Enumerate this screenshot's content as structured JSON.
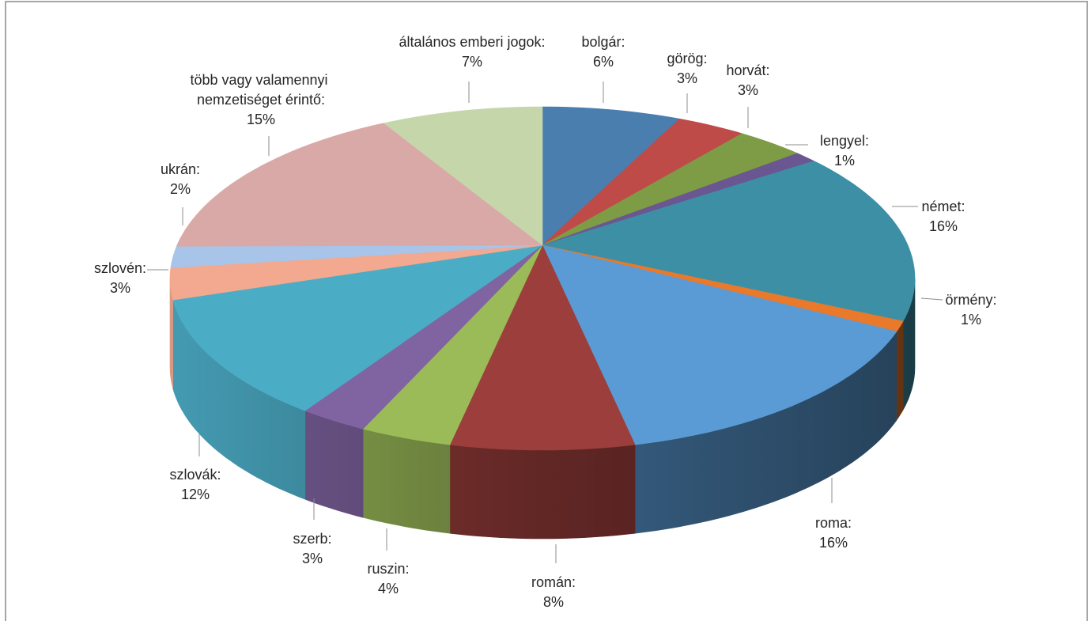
{
  "chart_data": {
    "type": "pie",
    "3d": true,
    "categories": [
      "bolgár",
      "görög",
      "horvát",
      "lengyel",
      "német",
      "örmény",
      "roma",
      "román",
      "ruszin",
      "szerb",
      "szlovák",
      "szlovén",
      "ukrán",
      "több vagy valamennyi nemzetiséget érintő",
      "általános emberi jogok"
    ],
    "values": [
      6,
      3,
      3,
      1,
      16,
      1,
      16,
      8,
      4,
      3,
      12,
      3,
      2,
      15,
      7
    ],
    "unit": "%",
    "colors": [
      "#4A7EAF",
      "#BE4B48",
      "#7E9C45",
      "#6A5690",
      "#3D8FA5",
      "#E9792B",
      "#5B9BD5",
      "#9C3F3C",
      "#9BBB59",
      "#8064A2",
      "#4BACC6",
      "#F2A98F",
      "#A8C4E9",
      "#D9A9A8",
      "#C5D6AB"
    ]
  }
}
